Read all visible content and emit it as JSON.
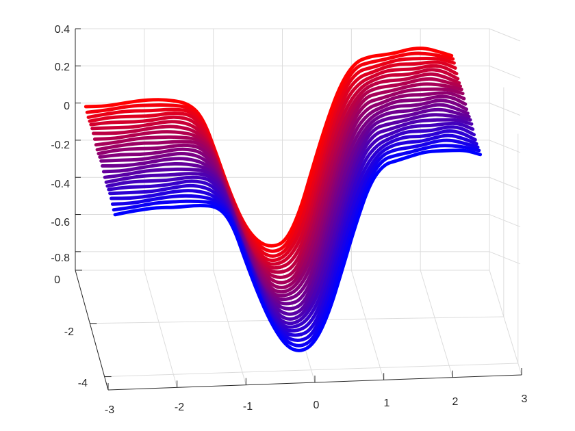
{
  "chart_data": {
    "type": "line",
    "view": "3d",
    "x_ticks": [
      -3,
      -2,
      -1,
      0,
      1,
      2,
      3
    ],
    "x_tick_labels": [
      "-3",
      "-2",
      "-1",
      "0",
      "1",
      "2",
      "3"
    ],
    "y_ticks": [
      0,
      -2,
      -4
    ],
    "y_tick_labels": [
      "0",
      "-2",
      "-4"
    ],
    "z_ticks": [
      0.4,
      0.2,
      0,
      -0.2,
      -0.4,
      -0.6,
      -0.8
    ],
    "z_tick_labels": [
      "0.4",
      "0.2",
      "0",
      "-0.2",
      "-0.4",
      "-0.6",
      "-0.8"
    ],
    "xlim": [
      -3,
      3
    ],
    "ylim": [
      -4.5,
      0
    ],
    "zlim": [
      -0.9,
      0.4
    ],
    "grid": true,
    "legend": false,
    "color_start": "#ff0000",
    "color_end": "#0000ff",
    "series_count": 24,
    "profile_x": [
      -2.9,
      -2.6,
      -2.3,
      -2.0,
      -1.7,
      -1.4,
      -1.2,
      -1.0,
      -0.8,
      -0.6,
      -0.4,
      -0.2,
      0.0,
      0.2,
      0.4,
      0.6,
      0.8,
      1.0,
      1.2,
      1.4,
      1.6,
      1.8,
      2.0,
      2.2,
      2.4
    ],
    "profile_z": [
      0.02,
      0.03,
      0.04,
      0.05,
      0.06,
      0.04,
      -0.05,
      -0.25,
      -0.45,
      -0.62,
      -0.72,
      -0.74,
      -0.7,
      -0.55,
      -0.3,
      -0.05,
      0.15,
      0.25,
      0.28,
      0.3,
      0.31,
      0.32,
      0.33,
      0.32,
      0.29
    ],
    "y_offsets": [
      -0.5,
      -4.5
    ],
    "z_drop": 0.26
  }
}
